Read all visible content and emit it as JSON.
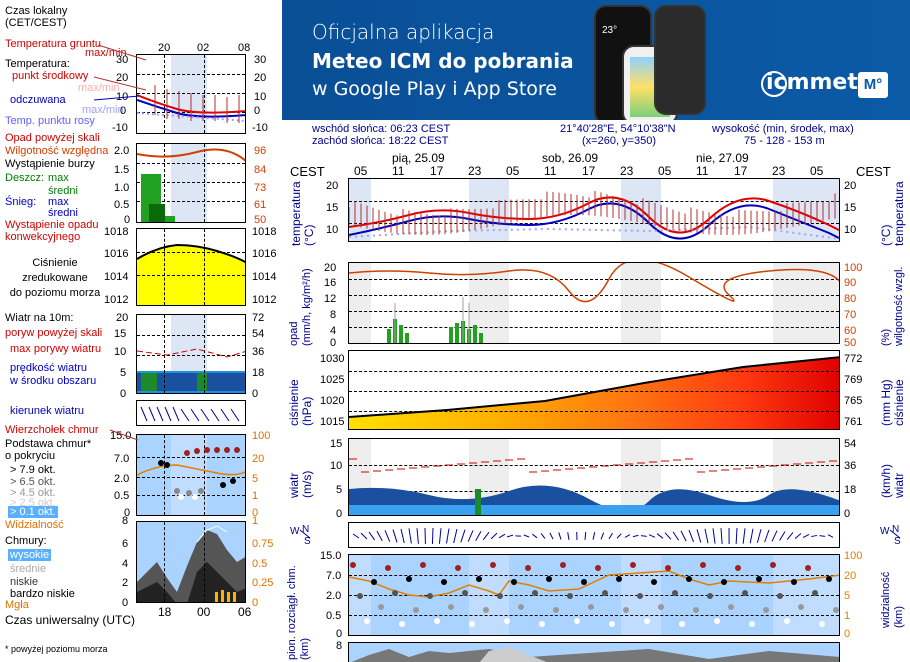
{
  "legend": {
    "timezone": "Czas lokalny\n(CET/CEST)",
    "hours_top": [
      "20",
      "02",
      "08"
    ],
    "soil_temp": "Temperatura gruntu",
    "soil_temp_sub": "max/min",
    "temperature": "Temperatura:",
    "mid_point": "punkt środkowy",
    "max_min": "max/min",
    "feels_like": "odczuwana",
    "feels_like_sub": "max/min",
    "dew_point": "Temp. punktu rosy",
    "temp_scale": [
      "30",
      "20",
      "10",
      "0",
      "-10"
    ],
    "precip_above": "Opad powyżej skali",
    "humidity": "Wilgotność względna",
    "storm": "Wystąpienie burzy",
    "rain": "Deszcz:",
    "snow": "Śnieg:",
    "max": "max",
    "avg": "średni",
    "conv_precip": "Wystąpienie opadu\nkonwekcyjnego",
    "precip_scale_l": [
      "2.0",
      "1.5",
      "1.0",
      "0.5",
      "0"
    ],
    "precip_scale_r": [
      "96",
      "84",
      "73",
      "61",
      "50"
    ],
    "pressure": "Ciśnienie\nzredukowane\ndo poziomu morza",
    "pressure_scale": [
      "1018",
      "1016",
      "1014",
      "1012"
    ],
    "wind": "Wiatr na 10m:",
    "gust_above": "poryw powyżej skali",
    "max_gust": "max porywy wiatru",
    "wind_speed": "prędkość wiatru\nw środku obszaru",
    "wind_scale_l": [
      "20",
      "15",
      "10",
      "5",
      "0"
    ],
    "wind_scale_r": [
      "72",
      "54",
      "36",
      "18",
      "0"
    ],
    "wind_dir": "kierunek wiatru",
    "cloud_tops": "Wierzchołek chmur",
    "cloud_base": "Podstawa chmur*\no pokryciu",
    "okt": [
      "> 7.9 okt.",
      "> 6.5 okt.",
      "> 4.5 okt.",
      "> 2.5 okt.",
      "> 0.1 okt."
    ],
    "visibility": "Widzialność",
    "cloud_scale_l": [
      "15.0",
      "7.0",
      "2.0",
      "0.5",
      "0"
    ],
    "cloud_scale_r": [
      "100",
      "20",
      "5",
      "1",
      "0"
    ],
    "clouds": "Chmury:",
    "high": "wysokie",
    "medium": "średnie",
    "low": "niskie",
    "very_low": "bardzo niskie",
    "fog": "Mgła",
    "cloudcover_scale_l": [
      "8",
      "6",
      "4",
      "2",
      "0"
    ],
    "cloudcover_scale_r": [
      "1",
      "0.75",
      "0.5",
      "0.25",
      "0"
    ],
    "utc": "Czas uniwersalny (UTC)",
    "hours_bottom": [
      "18",
      "00",
      "06"
    ],
    "footnote": "* powyżej poziomu morza"
  },
  "banner": {
    "line1": "Oficjalna aplikacja",
    "line2": "Meteo ICM do pobrania",
    "line3": "w Google Play i App Store",
    "logo": "icmmeteo",
    "logo_badge": "M°",
    "phone_temp": "23°"
  },
  "info": {
    "sunrise": "wschód słońca: 06:23 CEST",
    "sunset": "zachód słońca: 18:22 CEST",
    "coords": "21°40'28\"E, 54°10'38\"N",
    "grid": "(x=260,  y=350)",
    "elevation_label": "wysokość (min, środek, max)",
    "elevation": "75 - 128 - 153 m"
  },
  "main": {
    "tz": "CEST",
    "days": [
      "pią, 25.09",
      "sob, 26.09",
      "nie, 27.09"
    ],
    "hours": [
      "05",
      "11",
      "17",
      "23",
      "05",
      "11",
      "17",
      "23",
      "05",
      "11",
      "17",
      "23",
      "05"
    ],
    "temp": {
      "label_l": "temperatura\n(°C)",
      "label_r": "(°C)\ntemperatura",
      "scale": [
        "20",
        "15",
        "10"
      ]
    },
    "precip": {
      "label_l": "opad\n(mm/h, kg/m²/h)",
      "label_r": "(%)\nwilgotność wzgl.",
      "scale_l": [
        "20",
        "16",
        "12",
        "8",
        "4",
        "0"
      ],
      "scale_r": [
        "100",
        "90",
        "80",
        "70",
        "60",
        "50"
      ]
    },
    "pressure": {
      "label_l": "ciśnienie\n(hPa)",
      "label_r": "(mm Hg)\nciśnienie",
      "scale_l": [
        "1030",
        "1025",
        "1020",
        "1015"
      ],
      "scale_r": [
        "772",
        "769",
        "765",
        "761"
      ]
    },
    "wind": {
      "label_l": "wiatr\n(m/s)",
      "label_r": "(km/h)\nwiatr",
      "scale_l": [
        "15",
        "10",
        "5",
        "0"
      ],
      "scale_r": [
        "54",
        "36",
        "18",
        "0"
      ]
    },
    "clouds": {
      "label_l": "pion. rozciągł. chm.\n(km)",
      "label_r": "widzialność\n(km)",
      "scale_l": [
        "15.0",
        "7.0",
        "2.0",
        "0.5",
        "0"
      ],
      "scale_r": [
        "100",
        "20",
        "5",
        "1",
        "0"
      ]
    },
    "cover": {
      "scale_l": [
        "8"
      ]
    }
  },
  "colors": {
    "temp": "#e00000",
    "dew": "#0000c0",
    "precip": "#22a022",
    "humidity": "#d04000",
    "pressure_lo": "#ffe000",
    "pressure_hi": "#e00000",
    "wind": "#1040a0",
    "wind_bg": "#2090e0",
    "night": "#dde6f5",
    "banner": "#0b5aa6"
  }
}
